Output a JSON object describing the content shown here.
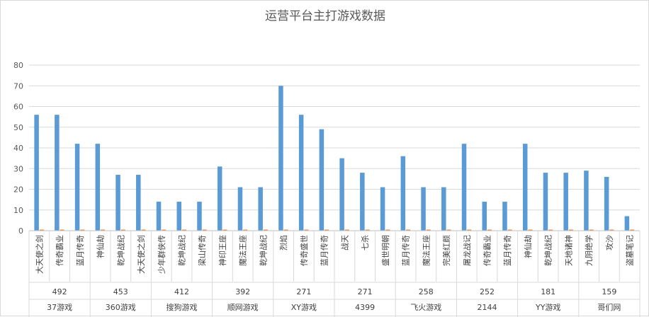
{
  "chart_data": {
    "type": "bar",
    "title": "运营平台主打游戏数据",
    "xlabel": "",
    "ylabel": "",
    "ylim": [
      0,
      80
    ],
    "yticks": [
      "0",
      "10",
      "20",
      "30",
      "40",
      "50",
      "60",
      "70",
      "80"
    ],
    "grid": true,
    "legend": "none",
    "colors": {
      "series1": "#5b9bd5",
      "series2": "#ed7d31"
    },
    "groups": [
      {
        "platform": "37游戏",
        "total": "492",
        "games": [
          "大天使之剑",
          "传奇霸业",
          "蓝月传奇"
        ],
        "values": [
          56,
          56,
          42
        ],
        "values2": [
          0.5,
          0.5,
          0.5
        ]
      },
      {
        "platform": "360游戏",
        "total": "453",
        "games": [
          "神仙劫",
          "乾坤战纪",
          "大天使之剑"
        ],
        "values": [
          42,
          27,
          27
        ],
        "values2": [
          0.5,
          0.5,
          0.5
        ]
      },
      {
        "platform": "搜狗游戏",
        "total": "412",
        "games": [
          "少年群侠传",
          "乾坤战纪",
          "梁山传奇"
        ],
        "values": [
          14,
          14,
          14
        ],
        "values2": [
          0.5,
          0.5,
          0.5
        ]
      },
      {
        "platform": "顺网游戏",
        "total": "392",
        "games": [
          "神印王座",
          "魔法王座",
          "乾坤战纪"
        ],
        "values": [
          31,
          21,
          21
        ],
        "values2": [
          0.5,
          0.5,
          0.5
        ]
      },
      {
        "platform": "XY游戏",
        "total": "271",
        "games": [
          "烈焰",
          "传奇盛世",
          "蓝月传奇"
        ],
        "values": [
          70,
          56,
          49
        ],
        "values2": [
          0.5,
          0.5,
          0.5
        ]
      },
      {
        "platform": "4399",
        "total": "271",
        "games": [
          "战天",
          "七杀",
          "盛世明朝"
        ],
        "values": [
          35,
          28,
          21
        ],
        "values2": [
          0.5,
          0.5,
          0.5
        ]
      },
      {
        "platform": "飞火游戏",
        "total": "258",
        "games": [
          "蓝月传奇",
          "魔法王座",
          "完美红颜"
        ],
        "values": [
          36,
          21,
          21
        ],
        "values2": [
          0.5,
          0.5,
          0.5
        ]
      },
      {
        "platform": "2144",
        "total": "252",
        "games": [
          "屠龙战记",
          "传奇霸业",
          "蓝月传奇"
        ],
        "values": [
          42,
          14,
          14
        ],
        "values2": [
          0.5,
          0.5,
          0.5
        ]
      },
      {
        "platform": "YY游戏",
        "total": "181",
        "games": [
          "神仙劫",
          "乾坤战纪",
          "天地诸神"
        ],
        "values": [
          42,
          28,
          28
        ],
        "values2": [
          0.5,
          0.5,
          0.5
        ]
      },
      {
        "platform": "哥们网",
        "total": "159",
        "games": [
          "九阴绝学",
          "攻沙",
          "盗墓笔记"
        ],
        "values": [
          29,
          26,
          7
        ],
        "values2": [
          0.5,
          0.5,
          0.5
        ]
      }
    ]
  }
}
